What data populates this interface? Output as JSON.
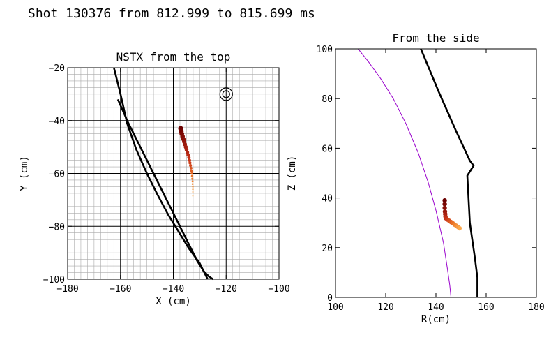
{
  "title": "Shot 130376 from 812.999 to 815.699 ms",
  "chart_data": [
    {
      "type": "scatter",
      "title": "NSTX from the top",
      "xlabel": "X (cm)",
      "ylabel": "Y (cm)",
      "xlim": [
        -180,
        -100
      ],
      "ylim": [
        -100,
        -20
      ],
      "grid": true,
      "x_ticks": [
        "−180",
        "−160",
        "−140",
        "−120",
        "−100"
      ],
      "y_ticks": [
        "−100",
        "−80",
        "−60",
        "−40",
        "−20"
      ],
      "series": [
        {
          "role": "wall-curve",
          "color": "#000000",
          "x": [
            -162.5,
            -160,
            -157.5,
            -154,
            -150,
            -146,
            -142,
            -138,
            -134,
            -130,
            -127
          ],
          "y": [
            -20,
            -30,
            -41,
            -51,
            -60,
            -68,
            -75.5,
            -82,
            -88.5,
            -94,
            -100
          ]
        },
        {
          "role": "wall-curve",
          "color": "#000000",
          "x": [
            -161,
            -157,
            -152,
            -147.5,
            -143,
            -138.5,
            -134.5,
            -131,
            -128.5,
            -126.5,
            -125
          ],
          "y": [
            -32,
            -41,
            -51,
            -60,
            -69,
            -78,
            -86,
            -93,
            -97,
            -99,
            -100
          ]
        },
        {
          "role": "trajectory",
          "color": "#6b0000",
          "x": [
            -137.2,
            -137,
            -136.8,
            -136.5,
            -136.2,
            -135.9,
            -135.6,
            -135.3,
            -135,
            -134.7,
            -134.4,
            -134.1,
            -133.9,
            -133.7,
            -133.5,
            -133.3,
            -133.1,
            -133,
            -132.9,
            -132.8,
            -132.7,
            -132.7,
            -132.6,
            -132.6,
            -132.6,
            -132.6
          ],
          "y": [
            -43,
            -44,
            -45,
            -46,
            -47,
            -48,
            -49,
            -50,
            -51,
            -52,
            -53,
            -54,
            -55,
            -56,
            -57,
            -58,
            -59,
            -60,
            -61,
            -62,
            -63,
            -64,
            -65,
            -66,
            -67,
            -68.5
          ]
        },
        {
          "role": "marker",
          "color": "#000000",
          "x": [
            -120
          ],
          "y": [
            -30
          ]
        }
      ]
    },
    {
      "type": "line",
      "title": "From the side",
      "xlabel": "R(cm)",
      "ylabel": "Z (cm)",
      "xlim": [
        100,
        180
      ],
      "ylim": [
        0,
        100
      ],
      "grid": false,
      "x_ticks": [
        "100",
        "120",
        "140",
        "160",
        "180"
      ],
      "y_ticks": [
        "0",
        "20",
        "40",
        "60",
        "80",
        "100"
      ],
      "series": [
        {
          "role": "plasma-boundary",
          "color": "#9900cc",
          "x": [
            109,
            113,
            118,
            123,
            128,
            133,
            137,
            140,
            143,
            144.5,
            145.5,
            146
          ],
          "y": [
            100,
            95,
            88,
            80,
            70,
            58,
            46,
            35,
            22,
            12,
            5,
            0
          ]
        },
        {
          "role": "wall",
          "color": "#000000",
          "x": [
            134,
            141,
            148,
            153.5,
            155,
            152.5,
            153.5,
            155.5,
            156.5,
            156.5
          ],
          "y": [
            100,
            83,
            67,
            55,
            53,
            49,
            30,
            16,
            8,
            0
          ]
        },
        {
          "role": "trajectory",
          "color": "#6b0000",
          "x": [
            143.5,
            143.5,
            143.5,
            143.6,
            143.7,
            143.8,
            144,
            144.6,
            145.3,
            146,
            146.7,
            147.4,
            148.1,
            148.8,
            149.4
          ],
          "y": [
            39,
            37.5,
            36,
            34.5,
            33.5,
            32.5,
            31.8,
            31.3,
            30.8,
            30.3,
            29.8,
            29.3,
            28.8,
            28.3,
            27.8
          ]
        }
      ]
    }
  ]
}
